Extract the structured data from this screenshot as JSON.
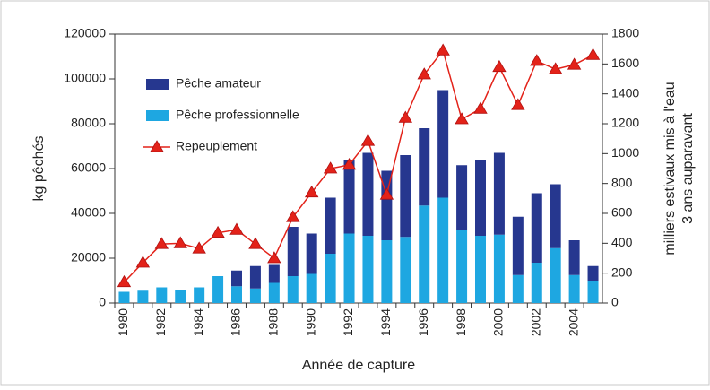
{
  "chart_data": {
    "type": "bar",
    "ylabel": "kg pêchés",
    "y2label": [
      "milliers estivaux mis à l'eau",
      "3 ans auparavant"
    ],
    "xlabel": "Année de capture",
    "categories": [
      "1980",
      null,
      "1982",
      null,
      "1984",
      null,
      "1986",
      null,
      "1988",
      null,
      "1990",
      null,
      "1992",
      null,
      "1994",
      null,
      "1996",
      null,
      "1998",
      null,
      "2000",
      null,
      "2002",
      null,
      "2004",
      null
    ],
    "stacked": true,
    "series": [
      {
        "name": "Pêche professionnelle",
        "color": "#1ea7e1",
        "values": [
          5000,
          5500,
          7000,
          6000,
          7000,
          12000,
          7500,
          6500,
          9000,
          12000,
          13000,
          22000,
          31000,
          30000,
          28000,
          29500,
          43500,
          47000,
          32500,
          30000,
          30500,
          12500,
          18000,
          24500,
          12500,
          10000
        ]
      },
      {
        "name": "Pêche amateur",
        "color": "#26378f",
        "values": [
          0,
          0,
          0,
          0,
          0,
          0,
          7000,
          10000,
          8000,
          22000,
          18000,
          25000,
          33000,
          37000,
          31000,
          36500,
          34500,
          48000,
          29000,
          34000,
          36500,
          26000,
          31000,
          28500,
          15500,
          6500
        ]
      },
      {
        "name": "Repeuplement",
        "color": "#e32219",
        "type": "line",
        "axis": "y2",
        "values": [
          140,
          270,
          395,
          400,
          365,
          470,
          490,
          395,
          300,
          575,
          740,
          900,
          925,
          1085,
          725,
          1240,
          1530,
          1690,
          1230,
          1300,
          1580,
          1325,
          1620,
          1565,
          1595,
          1660
        ]
      }
    ],
    "legend_order": [
      1,
      0,
      2
    ],
    "ylim": [
      0,
      120000
    ],
    "yticks": [
      0,
      20000,
      40000,
      60000,
      80000,
      100000,
      120000
    ],
    "y2lim": [
      0,
      1800
    ],
    "y2ticks": [
      0,
      200,
      400,
      600,
      800,
      1000,
      1200,
      1400,
      1600,
      1800
    ],
    "legend": "upper left"
  }
}
